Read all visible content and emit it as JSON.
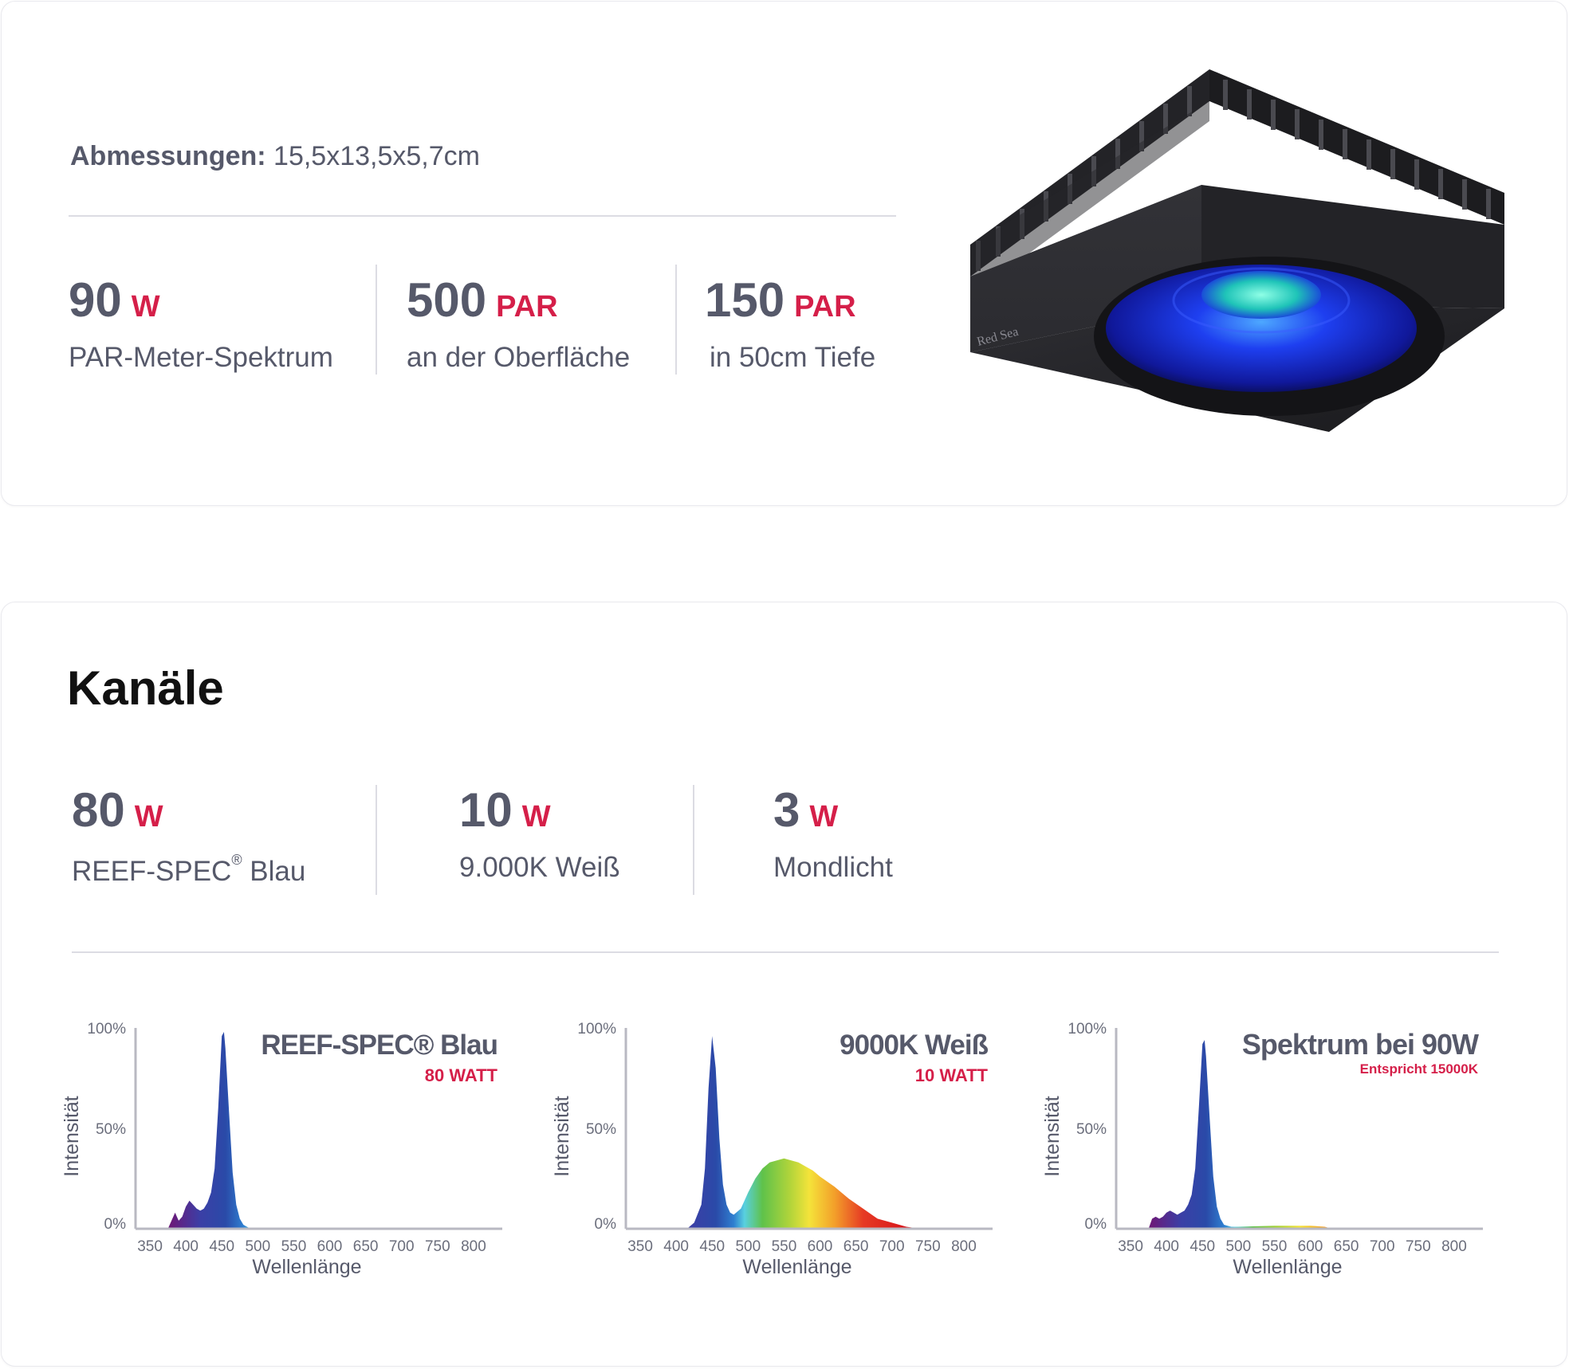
{
  "specs": {
    "dimensions_label": "Abmessungen:",
    "dimensions_value": "15,5x13,5x5,7cm",
    "stats": [
      {
        "value": "90",
        "unit": "W",
        "label": "PAR-Meter-Spektrum"
      },
      {
        "value": "500",
        "unit": "PAR",
        "label": "an der Oberfläche"
      },
      {
        "value": "150",
        "unit": "PAR",
        "label": "in 50cm Tiefe"
      }
    ]
  },
  "product": {
    "brand": "Red Sea",
    "colors": {
      "body": "#2b2b2f",
      "lens": "#1e3ff0"
    }
  },
  "channels": {
    "title": "Kanäle",
    "items": [
      {
        "value": "80",
        "unit": "W",
        "label": "REEF-SPEC",
        "label_sup": "®",
        "label_suffix": " Blau"
      },
      {
        "value": "10",
        "unit": "W",
        "label": "9.000K Weiß"
      },
      {
        "value": "3",
        "unit": "W",
        "label": "Mondlicht"
      }
    ]
  },
  "colors": {
    "accent": "#d51f49",
    "text": "#56596a"
  },
  "chart_data": [
    {
      "type": "area",
      "title": "REEF-SPEC® Blau",
      "subtitle": "80 WATT",
      "xlabel": "Wellenlänge",
      "ylabel": "Intensität",
      "x_ticks": [
        350,
        400,
        450,
        500,
        550,
        600,
        650,
        700,
        750,
        800
      ],
      "y_ticks": [
        "0%",
        "50%",
        "100%"
      ],
      "xlim": [
        330,
        840
      ],
      "ylim": [
        0,
        100
      ],
      "x": [
        375,
        380,
        385,
        390,
        395,
        400,
        405,
        410,
        415,
        420,
        425,
        430,
        435,
        440,
        445,
        450,
        453,
        455,
        460,
        465,
        470,
        475,
        480,
        485,
        490
      ],
      "values": [
        0,
        4,
        8,
        4,
        6,
        11,
        14,
        12,
        10,
        9,
        10,
        13,
        18,
        30,
        60,
        96,
        98,
        90,
        58,
        28,
        12,
        5,
        2,
        1,
        0
      ]
    },
    {
      "type": "area",
      "title": "9000K Weiß",
      "subtitle": "10 WATT",
      "xlabel": "Wellenlänge",
      "ylabel": "Intensität",
      "x_ticks": [
        350,
        400,
        450,
        500,
        550,
        600,
        650,
        700,
        750,
        800
      ],
      "y_ticks": [
        "0%",
        "50%",
        "100%"
      ],
      "xlim": [
        330,
        840
      ],
      "ylim": [
        0,
        100
      ],
      "x": [
        415,
        425,
        435,
        440,
        445,
        450,
        455,
        460,
        465,
        470,
        475,
        480,
        490,
        500,
        510,
        520,
        530,
        540,
        550,
        560,
        570,
        580,
        590,
        600,
        620,
        640,
        660,
        680,
        700,
        720,
        740
      ],
      "values": [
        0,
        3,
        12,
        30,
        70,
        96,
        80,
        45,
        22,
        12,
        8,
        7,
        10,
        18,
        25,
        30,
        33,
        34,
        35,
        34,
        33,
        31,
        29,
        26,
        21,
        15,
        10,
        5,
        3,
        1,
        0
      ]
    },
    {
      "type": "area",
      "title": "Spektrum bei 90W",
      "subtitle": "Entspricht 15000K",
      "xlabel": "Wellenlänge",
      "ylabel": "Intensität",
      "x_ticks": [
        350,
        400,
        450,
        500,
        550,
        600,
        650,
        700,
        750,
        800
      ],
      "y_ticks": [
        "0%",
        "50%",
        "100%"
      ],
      "xlim": [
        330,
        840
      ],
      "ylim": [
        0,
        100
      ],
      "x": [
        375,
        380,
        385,
        390,
        395,
        400,
        405,
        410,
        415,
        420,
        425,
        430,
        435,
        440,
        445,
        450,
        453,
        455,
        460,
        465,
        470,
        475,
        480,
        490,
        500,
        550,
        600,
        620,
        630
      ],
      "values": [
        0,
        5,
        6,
        5,
        6,
        8,
        9,
        8,
        7,
        8,
        9,
        12,
        17,
        30,
        60,
        92,
        94,
        86,
        55,
        26,
        11,
        5,
        2,
        1,
        1,
        1.5,
        1.5,
        1,
        0
      ]
    }
  ]
}
